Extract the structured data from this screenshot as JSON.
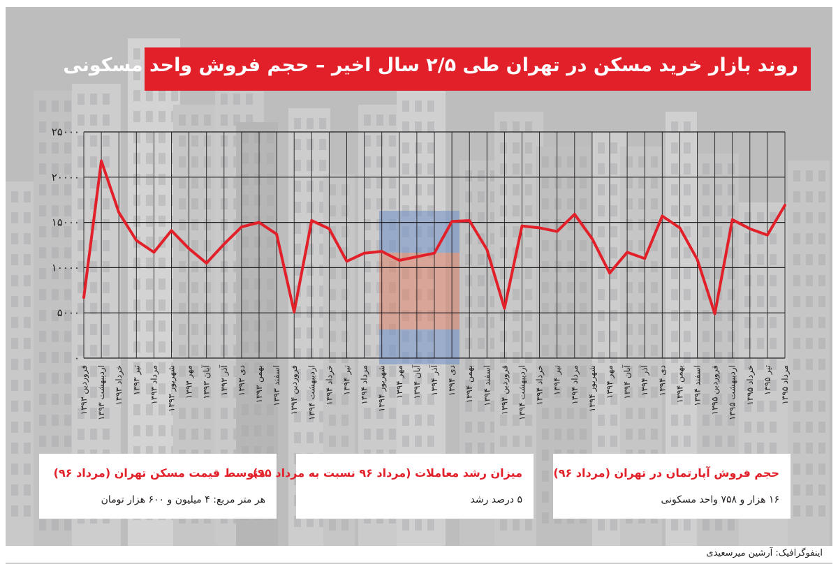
{
  "title": "روند بازار خرید مسکن در تهران طی ۲/۵ سال اخیر – حجم فروش واحد مسکونی",
  "colors": {
    "accent": "#e2202a",
    "background": "#bdbdbe",
    "grid": "#231f20",
    "text": "#231f20"
  },
  "chart_data": {
    "type": "line",
    "title": "",
    "xlabel": "",
    "ylabel": "",
    "ylim": [
      0,
      25000
    ],
    "ytick_values": [
      0,
      5000,
      10000,
      15000,
      20000,
      25000
    ],
    "ytick_labels": [
      "۰",
      "۵۰۰۰",
      "۱۰۰۰۰",
      "۱۵۰۰۰",
      "۲۰۰۰۰",
      "۲۵۰۰۰"
    ],
    "grid": true,
    "legend": "none",
    "categories": [
      "فروردین ۱۳۹۳",
      "اردیبهشت ۱۳۹۳",
      "خرداد ۱۳۹۳",
      "تیر ۱۳۹۳",
      "مرداد ۱۳۹۳",
      "شهریور ۱۳۹۳",
      "مهر ۱۳۹۳",
      "آبان ۱۳۹۳",
      "آذر ۱۳۹۳",
      "دی ۱۳۹۳",
      "بهمن ۱۳۹۳",
      "اسفند ۱۳۹۳",
      "فروردین ۱۳۹۴",
      "اردیبهشت ۱۳۹۴",
      "خرداد ۱۳۹۴",
      "تیر ۱۳۹۴",
      "مرداد ۱۳۹۴",
      "شهریور ۱۳۹۴",
      "مهر ۱۳۹۴",
      "آبان ۱۳۹۴",
      "آذر ۱۳۹۴",
      "دی ۱۳۹۴",
      "بهمن ۱۳۹۴",
      "اسفند ۱۳۹۴",
      "فروردین ۱۳۹۴",
      "اردیبهشت ۱۳۹۴",
      "خرداد ۱۳۹۴",
      "تیر ۱۳۹۴",
      "مرداد ۱۳۹۴",
      "شهریور ۱۳۹۴",
      "مهر ۱۳۹۴",
      "آبان ۱۳۹۴",
      "آذر ۱۳۹۴",
      "دی ۱۳۹۴",
      "بهمن ۱۳۹۴",
      "اسفند ۱۳۹۴",
      "فروردین ۱۳۹۵",
      "اردیبهشت ۱۳۹۵",
      "خرداد ۱۳۹۵",
      "تیر ۱۳۹۵",
      "مرداد ۱۳۹۵"
    ],
    "series": [
      {
        "color": "#e2202a",
        "values": [
          6700,
          21800,
          16100,
          13000,
          11700,
          14100,
          12100,
          10500,
          12600,
          14500,
          15000,
          13700,
          5100,
          15200,
          14300,
          10700,
          11600,
          11800,
          10800,
          11200,
          11600,
          15100,
          15200,
          12000,
          5500,
          14600,
          14400,
          14000,
          15900,
          13200,
          9400,
          11700,
          11000,
          15700,
          14400,
          10900,
          4900,
          15300,
          14300,
          13600,
          16900
        ]
      }
    ]
  },
  "cards": [
    {
      "title": "متوسط قیمت مسکن تهران (مرداد ۹۶)",
      "value": "هر متر مربع: ۴ میلیون و ۶۰۰ هزار تومان"
    },
    {
      "title": "میزان رشد معاملات (مرداد ۹۶ نسبت به مرداد ۹۵)",
      "value": "۵ درصد رشد"
    },
    {
      "title": "حجم فروش آپارتمان در تهران (مرداد ۹۶)",
      "value": "۱۶ هزار و ۷۵۸ واحد مسکونی"
    }
  ],
  "credit": "اینفوگرافیک: آرشین میرسعیدی"
}
